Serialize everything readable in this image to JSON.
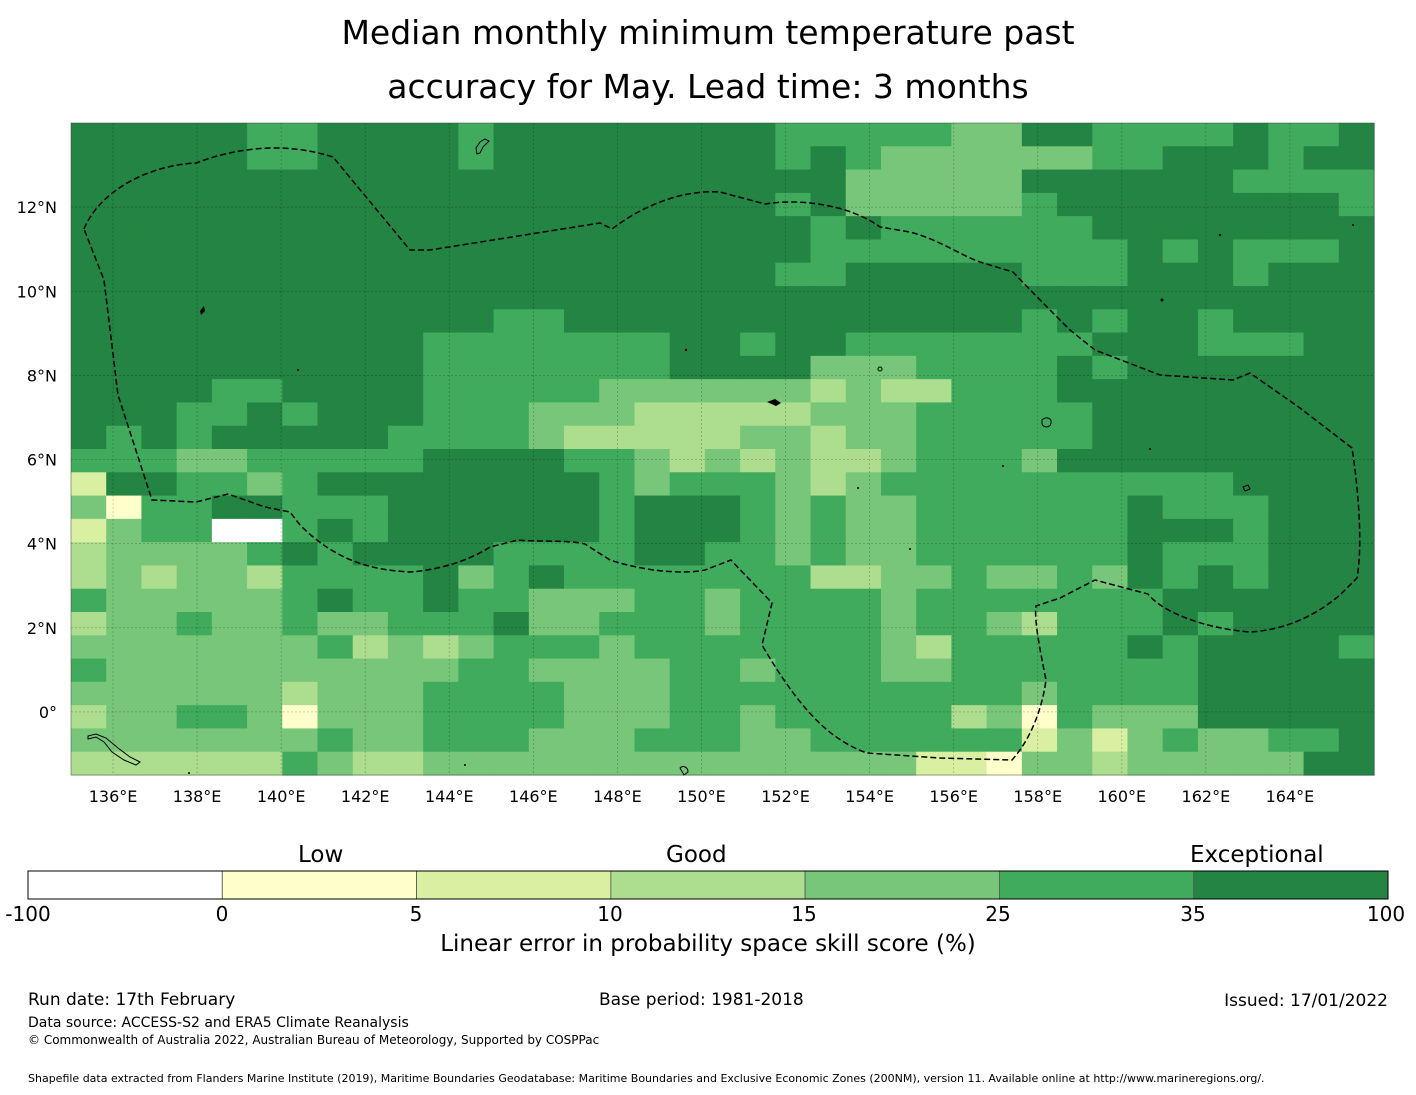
{
  "title": {
    "line1": "Median monthly minimum temperature past",
    "line2": "accuracy for May. Lead time: 3 months"
  },
  "map": {
    "lon_range": [
      135,
      166
    ],
    "lat_range": [
      -1.5,
      14
    ],
    "lon_ticks": [
      "136°E",
      "138°E",
      "140°E",
      "142°E",
      "144°E",
      "146°E",
      "148°E",
      "150°E",
      "152°E",
      "154°E",
      "156°E",
      "158°E",
      "160°E",
      "162°E",
      "164°E"
    ],
    "lat_ticks": [
      "12°N",
      "10°N",
      "8°N",
      "6°N",
      "4°N",
      "2°N",
      "0°"
    ],
    "grid_columns": 37,
    "grid_rows": 28,
    "cell_classes": [
      "6666655666656666666655555446655556556",
      "6666655666656666666656544444455666566",
      "6666666666666666666666444446666665555",
      "6666666666666666666656444445666666665",
      "6666666666666666666665655555566666666",
      "6666666666666666666665555555556565556",
      "6666666666666666666655666665556665666",
      "6666666666666666666666666666666666666",
      "6666666666665566666666666665656656666",
      "6666666666555555566566555555566655566",
      "6666666666555555566664445555656666666",
      "6666556666555554444443433555666666666",
      "6665565666555444333334445555566666666",
      "6565666665555433333443445555566666666",
      "5554455555666655434343345554666666666",
      "2665545666666665455543455555555556666",
      "4155665556666665666545445555556555666",
      "2455005656666665666545445555556665666",
      "3444456566665555665545445555556555666",
      "3434435555645655555553344544546565666",
      "5444445655655444554555545555555666666",
      "3445445445556445554555545543555656666",
      "4444444534345554555555543555556566665",
      "5444444444455444455455544555555566666",
      "4444443444555544455555555554555566666",
      "3445541444555544455455555341544466666",
      "4444444544555444555445555552424544556",
      "3333335433444444444444442214434444466"
    ],
    "land_color": "#000000"
  },
  "colorbar": {
    "categories": [
      "Low",
      "Good",
      "Exceptional"
    ],
    "ticks": [
      "-100",
      "0",
      "5",
      "10",
      "15",
      "25",
      "35",
      "100"
    ],
    "colors": [
      "#ffffff",
      "#ffffcc",
      "#d9f0a3",
      "#addd8e",
      "#78c679",
      "#41ab5d",
      "#238443"
    ],
    "label": "Linear error in probability space skill score (%)"
  },
  "footer": {
    "run_date": "Run date: 17th February",
    "base_period": "Base period: 1981-2018",
    "issued": "Issued: 17/01/2022",
    "data_source": "Data source: ACCESS-S2 and ERA5 Climate Reanalysis",
    "copyright": "© Commonwealth of Australia 2022, Australian Bureau of Meteorology, Supported by COSPPac",
    "shapefile": "Shapefile data extracted from Flanders Marine Institute (2019), Maritime Boundaries Geodatabase: Maritime Boundaries and Exclusive Economic Zones (200NM), version 11. Available online at http://www.marineregions.org/."
  }
}
